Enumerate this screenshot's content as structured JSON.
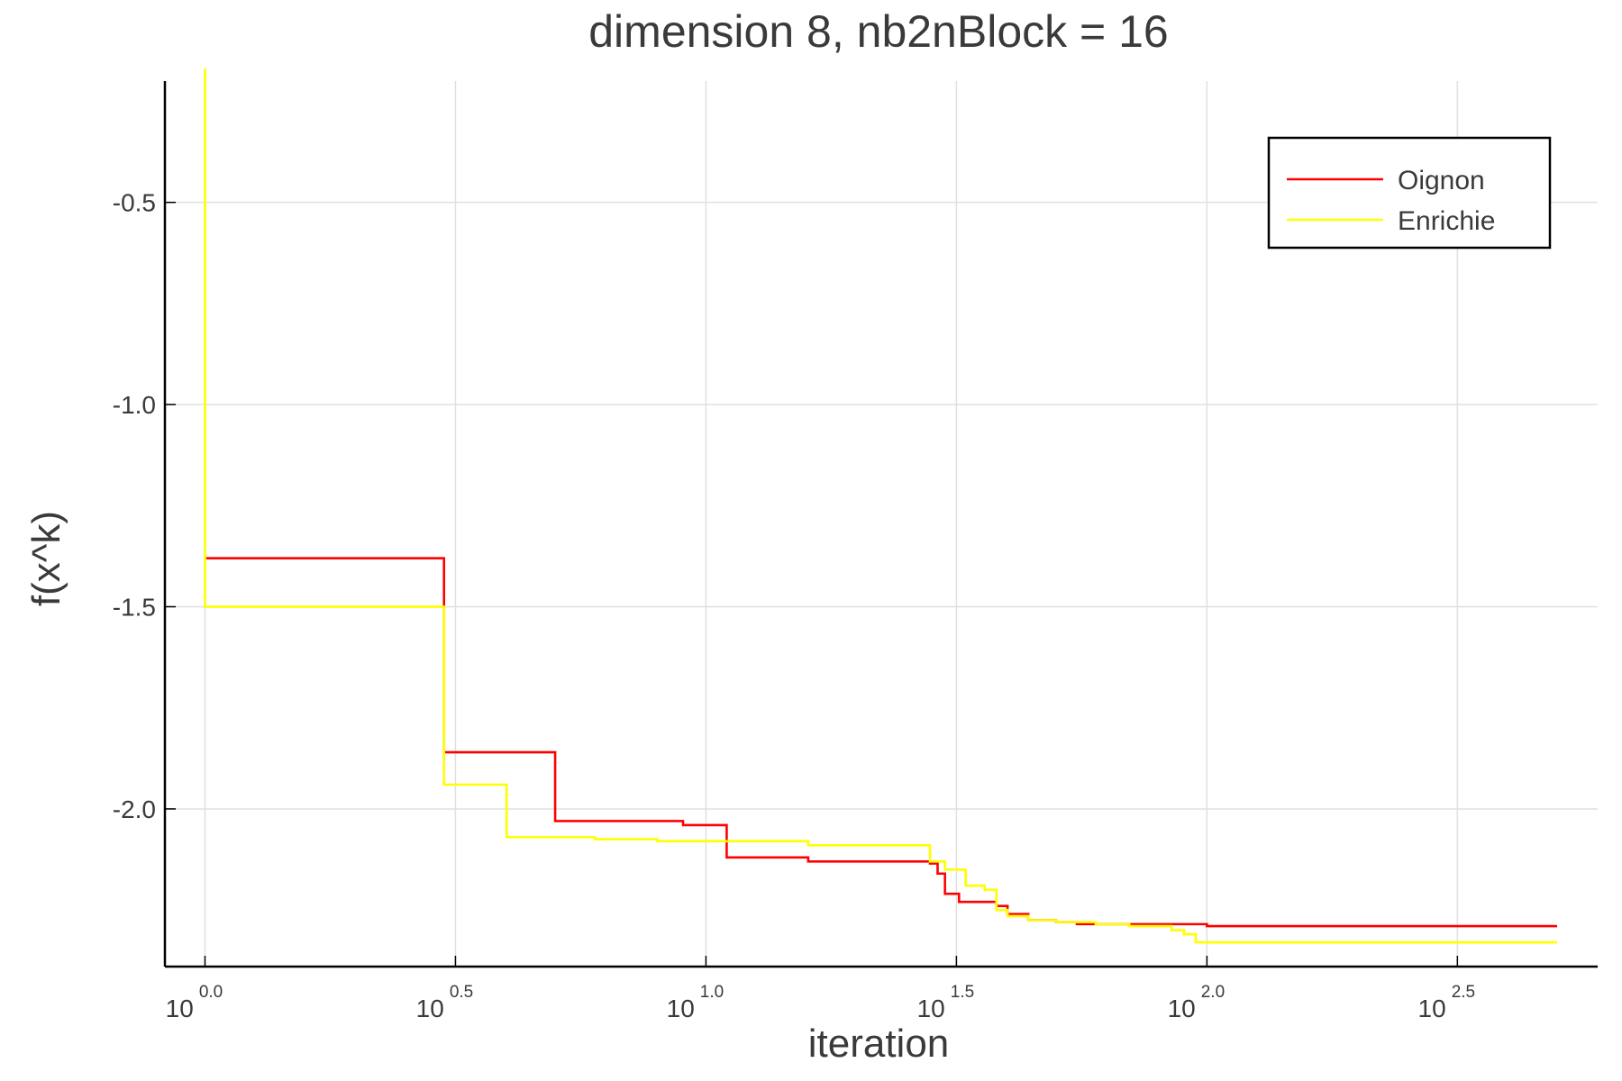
{
  "chart_data": {
    "type": "line",
    "title": "dimension 8, nb2nBlock = 16",
    "xlabel": "iteration",
    "ylabel": "f(x^k)",
    "x_scale": "log10",
    "x_range_exponents": [
      -0.08,
      2.78
    ],
    "ylim": [
      -2.39,
      -0.2
    ],
    "x_ticks": [
      {
        "base": "10",
        "exp": "0.0",
        "value": 0.0
      },
      {
        "base": "10",
        "exp": "0.5",
        "value": 0.5
      },
      {
        "base": "10",
        "exp": "1.0",
        "value": 1.0
      },
      {
        "base": "10",
        "exp": "1.5",
        "value": 1.5
      },
      {
        "base": "10",
        "exp": "2.0",
        "value": 2.0
      },
      {
        "base": "10",
        "exp": "2.5",
        "value": 2.5
      }
    ],
    "y_ticks": [
      {
        "label": "-0.5",
        "value": -0.5
      },
      {
        "label": "-1.0",
        "value": -1.0
      },
      {
        "label": "-1.5",
        "value": -1.5
      },
      {
        "label": "-2.0",
        "value": -2.0
      }
    ],
    "grid": true,
    "legend_position": "top-right",
    "series": [
      {
        "name": "Oignon",
        "color": "#ff0000",
        "step": "post",
        "x": [
          1,
          3,
          5,
          9,
          11,
          16,
          28,
          29,
          30,
          32,
          38,
          40,
          44,
          50,
          55,
          60,
          65,
          80,
          100,
          500
        ],
        "y": [
          -1.38,
          -1.86,
          -2.03,
          -2.04,
          -2.12,
          -2.13,
          -2.135,
          -2.16,
          -2.21,
          -2.23,
          -2.24,
          -2.26,
          -2.275,
          -2.28,
          -2.285,
          -2.285,
          -2.285,
          -2.285,
          -2.29,
          -2.29
        ]
      },
      {
        "name": "Enrichie",
        "color": "#ffff00",
        "step": "post",
        "x": [
          1,
          1.0001,
          3,
          4,
          6,
          8,
          16,
          28,
          30,
          33,
          36,
          38,
          40,
          44,
          50,
          60,
          70,
          85,
          90,
          95,
          500
        ],
        "y": [
          -0.17,
          -1.5,
          -1.94,
          -2.07,
          -2.075,
          -2.08,
          -2.09,
          -2.13,
          -2.15,
          -2.19,
          -2.2,
          -2.25,
          -2.265,
          -2.275,
          -2.28,
          -2.285,
          -2.29,
          -2.3,
          -2.31,
          -2.33,
          -2.33
        ]
      }
    ]
  }
}
